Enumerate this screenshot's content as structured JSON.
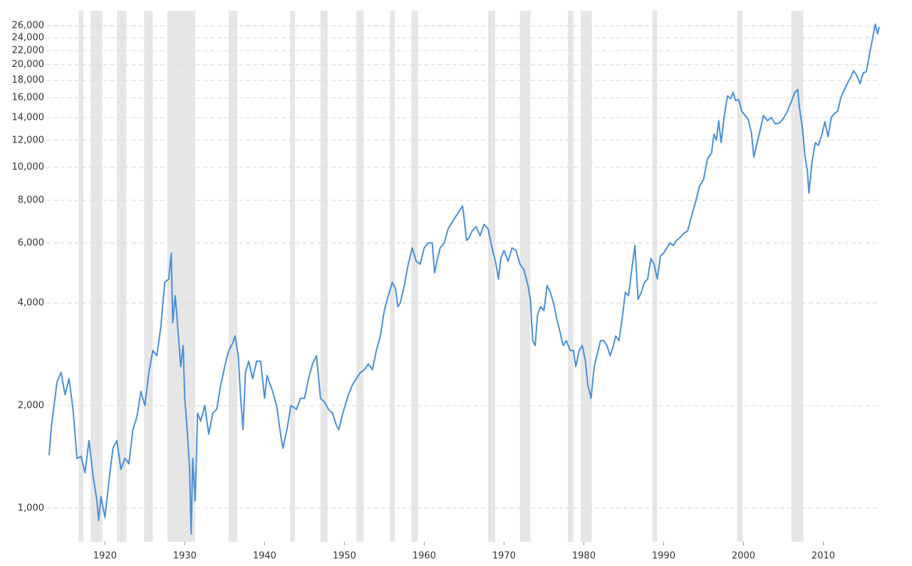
{
  "chart_data": {
    "type": "line",
    "x": [
      1913.0,
      1913.3,
      1914.0,
      1914.5,
      1915.0,
      1915.5,
      1916.0,
      1916.5,
      1917.0,
      1917.5,
      1918.0,
      1918.5,
      1919.0,
      1919.2,
      1919.5,
      1920.0,
      1920.5,
      1921.0,
      1921.5,
      1922.0,
      1922.5,
      1923.0,
      1923.5,
      1924.0,
      1924.5,
      1925.0,
      1925.5,
      1926.0,
      1926.5,
      1927.0,
      1927.5,
      1928.0,
      1928.3,
      1928.5,
      1928.8,
      1929.0,
      1929.5,
      1929.8,
      1930.0,
      1930.3,
      1930.6,
      1930.8,
      1931.0,
      1931.3,
      1931.6,
      1932.0,
      1932.5,
      1933.0,
      1933.5,
      1934.0,
      1934.5,
      1935.0,
      1935.5,
      1936.0,
      1936.3,
      1936.7,
      1937.0,
      1937.3,
      1937.6,
      1938.0,
      1938.5,
      1939.0,
      1939.5,
      1940.0,
      1940.3,
      1941.0,
      1941.5,
      1942.0,
      1942.3,
      1942.8,
      1943.3,
      1944.0,
      1944.5,
      1945.0,
      1945.5,
      1946.0,
      1946.5,
      1947.0,
      1947.5,
      1948.0,
      1948.5,
      1949.0,
      1949.3,
      1949.8,
      1950.5,
      1951.0,
      1951.5,
      1952.0,
      1952.5,
      1953.0,
      1953.5,
      1954.0,
      1954.5,
      1955.0,
      1955.5,
      1956.0,
      1956.4,
      1956.7,
      1957.0,
      1957.5,
      1958.0,
      1958.5,
      1959.0,
      1959.5,
      1960.0,
      1960.5,
      1961.0,
      1961.3,
      1961.6,
      1962.0,
      1962.5,
      1963.0,
      1963.5,
      1964.0,
      1964.5,
      1964.8,
      1965.0,
      1965.3,
      1965.6,
      1966.0,
      1966.5,
      1967.0,
      1967.5,
      1968.0,
      1968.5,
      1969.0,
      1969.3,
      1969.6,
      1970.0,
      1970.5,
      1971.0,
      1971.5,
      1972.0,
      1972.5,
      1973.0,
      1973.3,
      1973.6,
      1973.9,
      1974.2,
      1974.6,
      1975.0,
      1975.4,
      1975.8,
      1976.2,
      1976.6,
      1977.0,
      1977.4,
      1977.8,
      1978.3,
      1978.7,
      1979.0,
      1979.4,
      1979.8,
      1980.2,
      1980.5,
      1980.9,
      1981.3,
      1981.7,
      1982.1,
      1982.5,
      1982.9,
      1983.3,
      1983.7,
      1984.0,
      1984.4,
      1984.8,
      1985.2,
      1985.6,
      1986.0,
      1986.4,
      1986.8,
      1987.2,
      1987.6,
      1988.0,
      1988.4,
      1988.8,
      1989.2,
      1989.6,
      1990.0,
      1990.4,
      1990.8,
      1991.2,
      1991.6,
      1992.0,
      1992.5,
      1993.0,
      1993.5,
      1994.0,
      1994.5,
      1995.0,
      1995.5,
      1996.0,
      1996.3,
      1996.6,
      1996.9,
      1997.2,
      1997.6,
      1998.0,
      1998.4,
      1998.7,
      1999.0,
      1999.4,
      1999.8,
      2000.2,
      2000.6,
      2001.0,
      2001.3,
      2001.6,
      2002.0,
      2002.5,
      2003.0,
      2003.5,
      2004.0,
      2004.5,
      2005.0,
      2005.5,
      2006.0,
      2006.4,
      2006.8,
      2007.0,
      2007.4,
      2007.7,
      2008.0,
      2008.2,
      2008.6,
      2009.0,
      2009.4,
      2009.8,
      2010.2,
      2010.6,
      2011.0,
      2011.4,
      2011.8,
      2012.2,
      2012.6,
      2013.0,
      2013.4,
      2013.8,
      2014.2,
      2014.6,
      2015.0,
      2015.4,
      2015.8,
      2016.2,
      2016.5,
      2016.8,
      2017.0
    ],
    "values": [
      1430,
      1750,
      2350,
      2500,
      2150,
      2400,
      1950,
      1400,
      1420,
      1270,
      1580,
      1250,
      1050,
      920,
      1080,
      940,
      1200,
      1500,
      1580,
      1300,
      1400,
      1350,
      1700,
      1850,
      2200,
      2000,
      2500,
      2900,
      2800,
      3400,
      4600,
      4700,
      5600,
      3500,
      4200,
      3700,
      2600,
      3000,
      2100,
      1700,
      1300,
      840,
      1400,
      1050,
      1900,
      1800,
      2000,
      1650,
      1900,
      1950,
      2300,
      2600,
      2900,
      3050,
      3200,
      2800,
      2100,
      1700,
      2500,
      2700,
      2400,
      2700,
      2700,
      2100,
      2450,
      2200,
      2000,
      1650,
      1500,
      1700,
      2000,
      1950,
      2100,
      2100,
      2400,
      2650,
      2800,
      2100,
      2050,
      1950,
      1900,
      1750,
      1700,
      1900,
      2150,
      2300,
      2400,
      2500,
      2550,
      2650,
      2550,
      2900,
      3200,
      3800,
      4200,
      4600,
      4400,
      3900,
      4000,
      4500,
      5200,
      5800,
      5300,
      5200,
      5800,
      6000,
      6000,
      4900,
      5300,
      5800,
      6000,
      6600,
      6900,
      7200,
      7500,
      7700,
      7100,
      6100,
      6200,
      6500,
      6700,
      6300,
      6800,
      6600,
      5800,
      5200,
      4700,
      5400,
      5700,
      5300,
      5800,
      5700,
      5200,
      5000,
      4500,
      4100,
      3100,
      3000,
      3700,
      3900,
      3800,
      4500,
      4300,
      4000,
      3600,
      3300,
      3000,
      3100,
      2900,
      2900,
      2600,
      2900,
      3000,
      2700,
      2300,
      2100,
      2600,
      2850,
      3100,
      3100,
      3000,
      2800,
      3000,
      3200,
      3100,
      3600,
      4300,
      4200,
      5000,
      5900,
      4100,
      4300,
      4600,
      4700,
      5400,
      5200,
      4700,
      5500,
      5600,
      5800,
      6000,
      5900,
      6100,
      6200,
      6400,
      6500,
      7200,
      7900,
      8800,
      9200,
      10600,
      11000,
      12500,
      12000,
      13700,
      11800,
      14200,
      16200,
      15900,
      16600,
      15700,
      15800,
      14600,
      14200,
      13800,
      12600,
      10700,
      11500,
      12600,
      14200,
      13700,
      14000,
      13400,
      13500,
      13900,
      14600,
      15600,
      16500,
      16900,
      15000,
      13000,
      10800,
      9800,
      8400,
      10400,
      11800,
      11600,
      12400,
      13600,
      12300,
      14000,
      14400,
      14600,
      16000,
      16800,
      17600,
      18300,
      19200,
      18600,
      17600,
      18900,
      19100,
      21500,
      24000,
      26300,
      24600,
      25800
    ],
    "color": "#4a90d9",
    "recessions": [
      [
        1916.7,
        1917.3
      ],
      [
        1918.2,
        1919.7
      ],
      [
        1921.5,
        1922.7
      ],
      [
        1924.9,
        1926.0
      ],
      [
        1927.8,
        1931.3
      ],
      [
        1935.5,
        1936.6
      ],
      [
        1943.2,
        1943.8
      ],
      [
        1947.0,
        1947.9
      ],
      [
        1951.5,
        1952.4
      ],
      [
        1955.7,
        1956.3
      ],
      [
        1958.4,
        1959.2
      ],
      [
        1968.0,
        1968.9
      ],
      [
        1972.0,
        1973.3
      ],
      [
        1978.0,
        1978.7
      ],
      [
        1979.6,
        1981.0
      ],
      [
        1988.6,
        1989.2
      ],
      [
        1999.2,
        1999.9
      ],
      [
        2006.0,
        2007.5
      ]
    ],
    "recession_color": "#e6e6e6",
    "xlim": [
      1912.65,
      2017.1
    ],
    "xticks": [
      1920,
      1930,
      1940,
      1950,
      1960,
      1970,
      1980,
      1990,
      2000,
      2010
    ],
    "ylim": [
      797,
      28800
    ],
    "yscale": "log",
    "yticks": [
      {
        "value": 1000,
        "label": "1,000"
      },
      {
        "value": 2000,
        "label": "2,000"
      },
      {
        "value": 4000,
        "label": "4,000"
      },
      {
        "value": 6000,
        "label": "6,000"
      },
      {
        "value": 8000,
        "label": "8,000"
      },
      {
        "value": 10000,
        "label": "10,000"
      },
      {
        "value": 12000,
        "label": "12,000"
      },
      {
        "value": 14000,
        "label": "14,000"
      },
      {
        "value": 16000,
        "label": "16,000"
      },
      {
        "value": 18000,
        "label": "18,000"
      },
      {
        "value": 20000,
        "label": "20,000"
      },
      {
        "value": 22000,
        "label": "22,000"
      },
      {
        "value": 24000,
        "label": "24,000"
      },
      {
        "value": 26000,
        "label": "26,000"
      }
    ],
    "grid": true
  }
}
